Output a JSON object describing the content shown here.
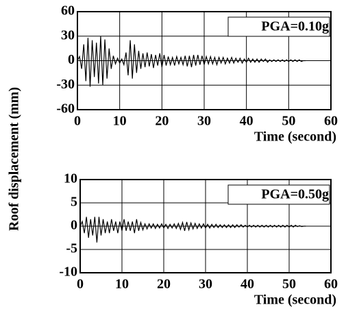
{
  "chart_data": [
    {
      "type": "line",
      "ylabel": "Roof displacement (mm)",
      "xlabel": "Time (second)",
      "annotation": "PGA=0.10g",
      "xlim": [
        0,
        60
      ],
      "xticks": [
        0,
        10,
        20,
        30,
        40,
        50,
        60
      ],
      "ylim": [
        -60,
        60
      ],
      "yticks": [
        60,
        30,
        0,
        -30,
        -60
      ],
      "grid": true,
      "x": [
        0,
        0.5,
        1,
        1.5,
        2,
        2.5,
        3,
        3.5,
        4,
        4.5,
        5,
        5.5,
        6,
        6.5,
        7,
        7.5,
        8,
        8.5,
        9,
        9.5,
        10,
        10.5,
        11,
        11.5,
        12,
        12.5,
        13,
        13.5,
        14,
        14.5,
        15,
        15.5,
        16,
        16.5,
        17,
        17.5,
        18,
        18.5,
        19,
        19.5,
        20,
        20.5,
        21,
        21.5,
        22,
        22.5,
        23,
        23.5,
        24,
        24.5,
        25,
        25.5,
        26,
        26.5,
        27,
        27.5,
        28,
        28.5,
        29,
        29.5,
        30,
        30.5,
        31,
        31.5,
        32,
        32.5,
        33,
        33.5,
        34,
        34.5,
        35,
        35.5,
        36,
        36.5,
        37,
        37.5,
        38,
        38.5,
        39,
        39.5,
        40,
        40.5,
        41,
        41.5,
        42,
        42.5,
        43,
        43.5,
        44,
        44.5,
        45,
        45.5,
        46,
        46.5,
        47,
        47.5,
        48,
        48.5,
        49,
        49.5,
        50,
        50.5,
        51,
        51.5,
        52,
        52.5,
        53,
        53.5,
        54
      ],
      "series": [
        {
          "color": "#000000",
          "values": [
            0,
            5,
            -10,
            20,
            -25,
            28,
            -32,
            25,
            -20,
            22,
            -28,
            30,
            -30,
            26,
            -22,
            15,
            -10,
            6,
            -4,
            3,
            -3,
            2,
            -5,
            10,
            -18,
            25,
            -22,
            20,
            -15,
            12,
            -10,
            9,
            -8,
            10,
            -7,
            8,
            -9,
            7,
            -6,
            9,
            -8,
            7,
            -6,
            5,
            -5,
            4,
            -6,
            5,
            -4,
            4,
            -5,
            6,
            -7,
            6,
            -8,
            7,
            -6,
            7,
            -5,
            6,
            -5,
            5,
            -4,
            5,
            -4,
            4,
            -5,
            4,
            -3,
            4,
            -4,
            3,
            -3,
            4,
            -3,
            3,
            -2,
            3,
            -3,
            2,
            -2,
            3,
            -2,
            2,
            -2,
            2,
            -2,
            2,
            -1,
            2,
            -2,
            1,
            -1,
            1,
            -1,
            1,
            -1,
            1,
            -1,
            1,
            -1,
            1,
            -1,
            1,
            -1,
            1,
            -1,
            0,
            0
          ]
        }
      ]
    },
    {
      "type": "line",
      "xlabel": "Time (second)",
      "annotation": "PGA=0.50g",
      "xlim": [
        0,
        60
      ],
      "xticks": [
        0,
        10,
        20,
        30,
        40,
        50,
        60
      ],
      "ylim": [
        -10,
        10
      ],
      "yticks": [
        10,
        5,
        0,
        -5,
        -10
      ],
      "grid": true,
      "x": [
        0,
        0.5,
        1,
        1.5,
        2,
        2.5,
        3,
        3.5,
        4,
        4.5,
        5,
        5.5,
        6,
        6.5,
        7,
        7.5,
        8,
        8.5,
        9,
        9.5,
        10,
        10.5,
        11,
        11.5,
        12,
        12.5,
        13,
        13.5,
        14,
        14.5,
        15,
        15.5,
        16,
        16.5,
        17,
        17.5,
        18,
        18.5,
        19,
        19.5,
        20,
        20.5,
        21,
        21.5,
        22,
        22.5,
        23,
        23.5,
        24,
        24.5,
        25,
        25.5,
        26,
        26.5,
        27,
        27.5,
        28,
        28.5,
        29,
        29.5,
        30,
        30.5,
        31,
        31.5,
        32,
        32.5,
        33,
        33.5,
        34,
        34.5,
        35,
        35.5,
        36,
        36.5,
        37,
        37.5,
        38,
        38.5,
        39,
        39.5,
        40,
        40.5,
        41,
        41.5,
        42,
        42.5,
        43,
        43.5,
        44,
        44.5,
        45,
        45.5,
        46,
        46.5,
        47,
        47.5,
        48,
        48.5,
        49,
        49.5,
        50,
        50.5,
        51,
        51.5,
        52,
        52.5,
        53,
        53.5,
        54
      ],
      "series": [
        {
          "color": "#000000",
          "values": [
            0,
            1,
            -1.5,
            2,
            -2.5,
            1.5,
            -2,
            2,
            -3.5,
            2,
            -2,
            1.5,
            -1.5,
            1,
            -1.5,
            1.5,
            -1,
            1,
            -1.5,
            1,
            -1,
            1.5,
            -1,
            1,
            -1,
            1,
            -1.5,
            1.5,
            -1,
            0.8,
            -0.8,
            0.5,
            -0.6,
            0.5,
            -0.4,
            0.5,
            -0.5,
            0.4,
            -0.4,
            0.5,
            -0.4,
            0.4,
            -0.5,
            0.4,
            -0.4,
            0.5,
            -0.5,
            0.6,
            -0.7,
            0.8,
            -1,
            0.9,
            -0.8,
            0.7,
            -0.6,
            0.6,
            -0.5,
            0.5,
            -0.4,
            0.5,
            -0.4,
            0.4,
            -0.4,
            0.4,
            -0.3,
            0.4,
            -0.3,
            0.3,
            -0.3,
            0.3,
            -0.3,
            0.3,
            -0.3,
            0.3,
            -0.3,
            0.3,
            -0.2,
            0.3,
            -0.2,
            0.2,
            -0.2,
            0.2,
            -0.2,
            0.2,
            -0.2,
            0.2,
            -0.2,
            0.2,
            -0.2,
            0.2,
            -0.2,
            0.2,
            -0.2,
            0.2,
            -0.2,
            0.2,
            -0.2,
            0.2,
            -0.2,
            0.2,
            -0.2,
            0.2,
            -0.2,
            0.2,
            -0.1,
            0.1,
            -0.1,
            0,
            0
          ]
        }
      ]
    }
  ]
}
